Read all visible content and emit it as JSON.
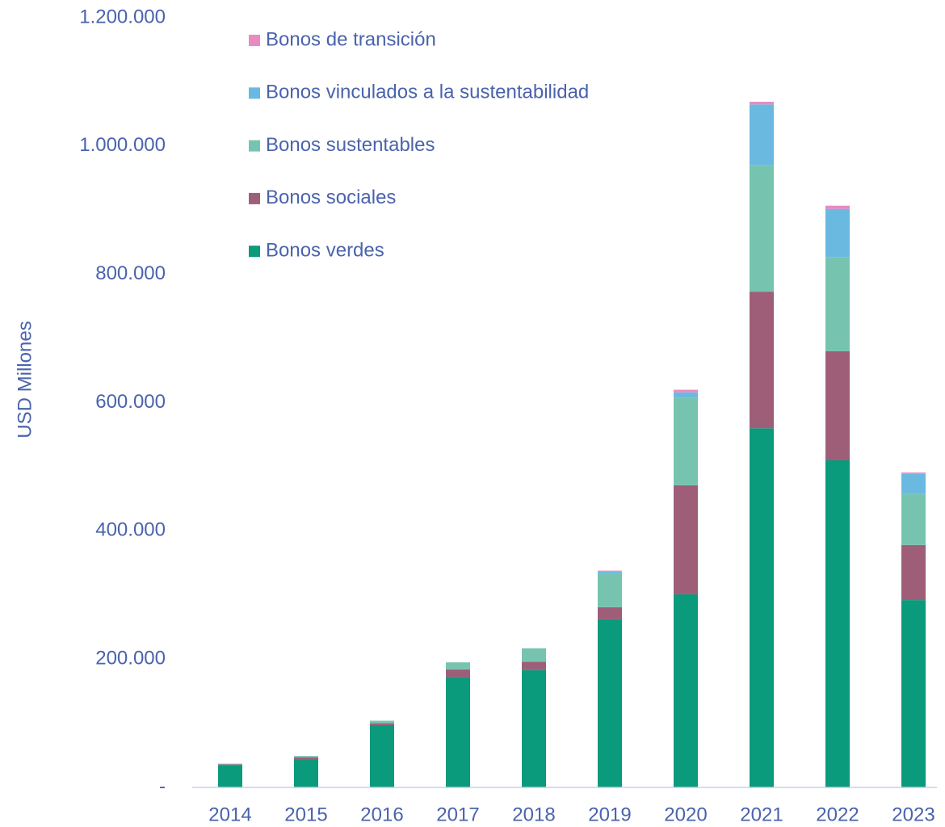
{
  "chart_data": {
    "type": "stacked_bar",
    "y_label": "USD Millones",
    "categories": [
      "2014",
      "2015",
      "2016",
      "2017",
      "2018",
      "2019",
      "2020",
      "2021",
      "2022",
      "2023"
    ],
    "series": [
      {
        "name": "Bonos verdes",
        "color": "#0a9a7c",
        "values": [
          35000,
          44000,
          97000,
          172000,
          183000,
          262000,
          301000,
          560000,
          510000,
          292000
        ]
      },
      {
        "name": "Bonos sociales",
        "color": "#9e5e78",
        "values": [
          1000,
          3000,
          3000,
          12000,
          13000,
          19000,
          170000,
          213000,
          170000,
          86000
        ]
      },
      {
        "name": "Bonos sustentables",
        "color": "#76c4b0",
        "values": [
          1000,
          2000,
          4000,
          11000,
          21000,
          53000,
          137000,
          197000,
          147000,
          80000
        ]
      },
      {
        "name": "Bonos vinculados a la sustentabilidad",
        "color": "#6ab9e0",
        "values": [
          0,
          0,
          0,
          0,
          0,
          3000,
          8000,
          95000,
          75000,
          31000
        ]
      },
      {
        "name": "Bonos de transición",
        "color": "#e98ac0",
        "values": [
          0,
          0,
          0,
          0,
          0,
          1000,
          4000,
          4000,
          5000,
          2000
        ]
      }
    ],
    "ylim": [
      0,
      1200000
    ],
    "yticks": [
      {
        "value": 0,
        "label": "-"
      },
      {
        "value": 200000,
        "label": "200.000"
      },
      {
        "value": 400000,
        "label": "400.000"
      },
      {
        "value": 600000,
        "label": "600.000"
      },
      {
        "value": 800000,
        "label": "800.000"
      },
      {
        "value": 1000000,
        "label": "1.000.000"
      },
      {
        "value": 1200000,
        "label": "1.200.000"
      }
    ],
    "grid": false,
    "legend": "top-left"
  }
}
